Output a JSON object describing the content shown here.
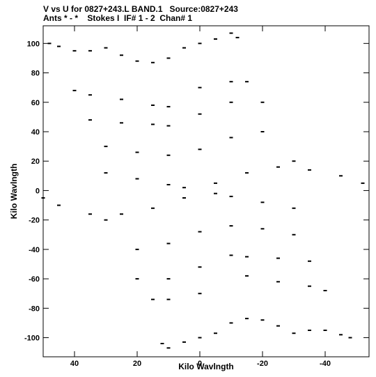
{
  "header": {
    "line1": "V vs U for 0827+243.L BAND.1   Source:0827+243",
    "line2": "Ants * - *    Stokes I  IF# 1 - 2  Chan# 1"
  },
  "chart_data": {
    "type": "scatter",
    "title": "V vs U for 0827+243.L BAND.1   Source:0827+243",
    "subtitle": "Ants * - *    Stokes I  IF# 1 - 2  Chan# 1",
    "xlabel": "Kilo Wavlngth",
    "ylabel": "Kilo Wavlngth",
    "xlim": [
      50,
      -54
    ],
    "ylim": [
      -113,
      112
    ],
    "x_reversed": true,
    "xticks": [
      40,
      20,
      0,
      -20,
      -40
    ],
    "yticks": [
      100,
      80,
      60,
      40,
      20,
      0,
      -20,
      -40,
      -60,
      -80,
      -100
    ],
    "grid": false,
    "description_of_points": "u-v coverage: dashed radial tracks symmetric about origin, star/bow-tie pattern",
    "series": [
      {
        "values": [
          {
            "x": 48,
            "y": 100
          },
          {
            "x": 45,
            "y": 98
          },
          {
            "x": 40,
            "y": 95
          },
          {
            "x": 35,
            "y": 95
          },
          {
            "x": 30,
            "y": 97
          },
          {
            "x": 25,
            "y": 92
          },
          {
            "x": 20,
            "y": 88
          },
          {
            "x": 15,
            "y": 87
          },
          {
            "x": 10,
            "y": 90
          },
          {
            "x": 5,
            "y": 97
          },
          {
            "x": 0,
            "y": 100
          },
          {
            "x": -5,
            "y": 103
          },
          {
            "x": -10,
            "y": 107
          },
          {
            "x": -12,
            "y": 104
          },
          {
            "x": 40,
            "y": 68
          },
          {
            "x": 35,
            "y": 65
          },
          {
            "x": 25,
            "y": 62
          },
          {
            "x": 15,
            "y": 58
          },
          {
            "x": 10,
            "y": 57
          },
          {
            "x": 0,
            "y": 70
          },
          {
            "x": -10,
            "y": 74
          },
          {
            "x": -15,
            "y": 74
          },
          {
            "x": 35,
            "y": 48
          },
          {
            "x": 25,
            "y": 46
          },
          {
            "x": 15,
            "y": 45
          },
          {
            "x": 10,
            "y": 44
          },
          {
            "x": 0,
            "y": 52
          },
          {
            "x": -10,
            "y": 60
          },
          {
            "x": -20,
            "y": 60
          },
          {
            "x": 30,
            "y": 30
          },
          {
            "x": 20,
            "y": 26
          },
          {
            "x": 10,
            "y": 24
          },
          {
            "x": 0,
            "y": 28
          },
          {
            "x": -10,
            "y": 36
          },
          {
            "x": -20,
            "y": 40
          },
          {
            "x": -30,
            "y": 20
          },
          {
            "x": 30,
            "y": 12
          },
          {
            "x": 20,
            "y": 8
          },
          {
            "x": 10,
            "y": 4
          },
          {
            "x": 5,
            "y": 2
          },
          {
            "x": -5,
            "y": 5
          },
          {
            "x": -15,
            "y": 12
          },
          {
            "x": -25,
            "y": 16
          },
          {
            "x": -35,
            "y": 14
          },
          {
            "x": -45,
            "y": 10
          },
          {
            "x": -52,
            "y": 5
          },
          {
            "x": 50,
            "y": -5
          },
          {
            "x": 45,
            "y": -10
          },
          {
            "x": 35,
            "y": -16
          },
          {
            "x": 25,
            "y": -16
          },
          {
            "x": 15,
            "y": -12
          },
          {
            "x": 5,
            "y": -5
          },
          {
            "x": -5,
            "y": -2
          },
          {
            "x": -10,
            "y": -4
          },
          {
            "x": -20,
            "y": -8
          },
          {
            "x": -30,
            "y": -12
          },
          {
            "x": 30,
            "y": -20
          },
          {
            "x": 20,
            "y": -40
          },
          {
            "x": 10,
            "y": -36
          },
          {
            "x": 0,
            "y": -28
          },
          {
            "x": -10,
            "y": -24
          },
          {
            "x": -20,
            "y": -26
          },
          {
            "x": -30,
            "y": -30
          },
          {
            "x": 20,
            "y": -60
          },
          {
            "x": 10,
            "y": -60
          },
          {
            "x": 0,
            "y": -52
          },
          {
            "x": -10,
            "y": -44
          },
          {
            "x": -15,
            "y": -45
          },
          {
            "x": -25,
            "y": -46
          },
          {
            "x": -35,
            "y": -48
          },
          {
            "x": 15,
            "y": -74
          },
          {
            "x": 10,
            "y": -74
          },
          {
            "x": 0,
            "y": -70
          },
          {
            "x": -15,
            "y": -58
          },
          {
            "x": -25,
            "y": -62
          },
          {
            "x": -35,
            "y": -65
          },
          {
            "x": -40,
            "y": -68
          },
          {
            "x": 12,
            "y": -104
          },
          {
            "x": 10,
            "y": -107
          },
          {
            "x": 5,
            "y": -103
          },
          {
            "x": 0,
            "y": -100
          },
          {
            "x": -5,
            "y": -97
          },
          {
            "x": -10,
            "y": -90
          },
          {
            "x": -15,
            "y": -87
          },
          {
            "x": -20,
            "y": -88
          },
          {
            "x": -25,
            "y": -92
          },
          {
            "x": -30,
            "y": -97
          },
          {
            "x": -35,
            "y": -95
          },
          {
            "x": -40,
            "y": -95
          },
          {
            "x": -45,
            "y": -98
          },
          {
            "x": -48,
            "y": -100
          }
        ]
      }
    ]
  }
}
